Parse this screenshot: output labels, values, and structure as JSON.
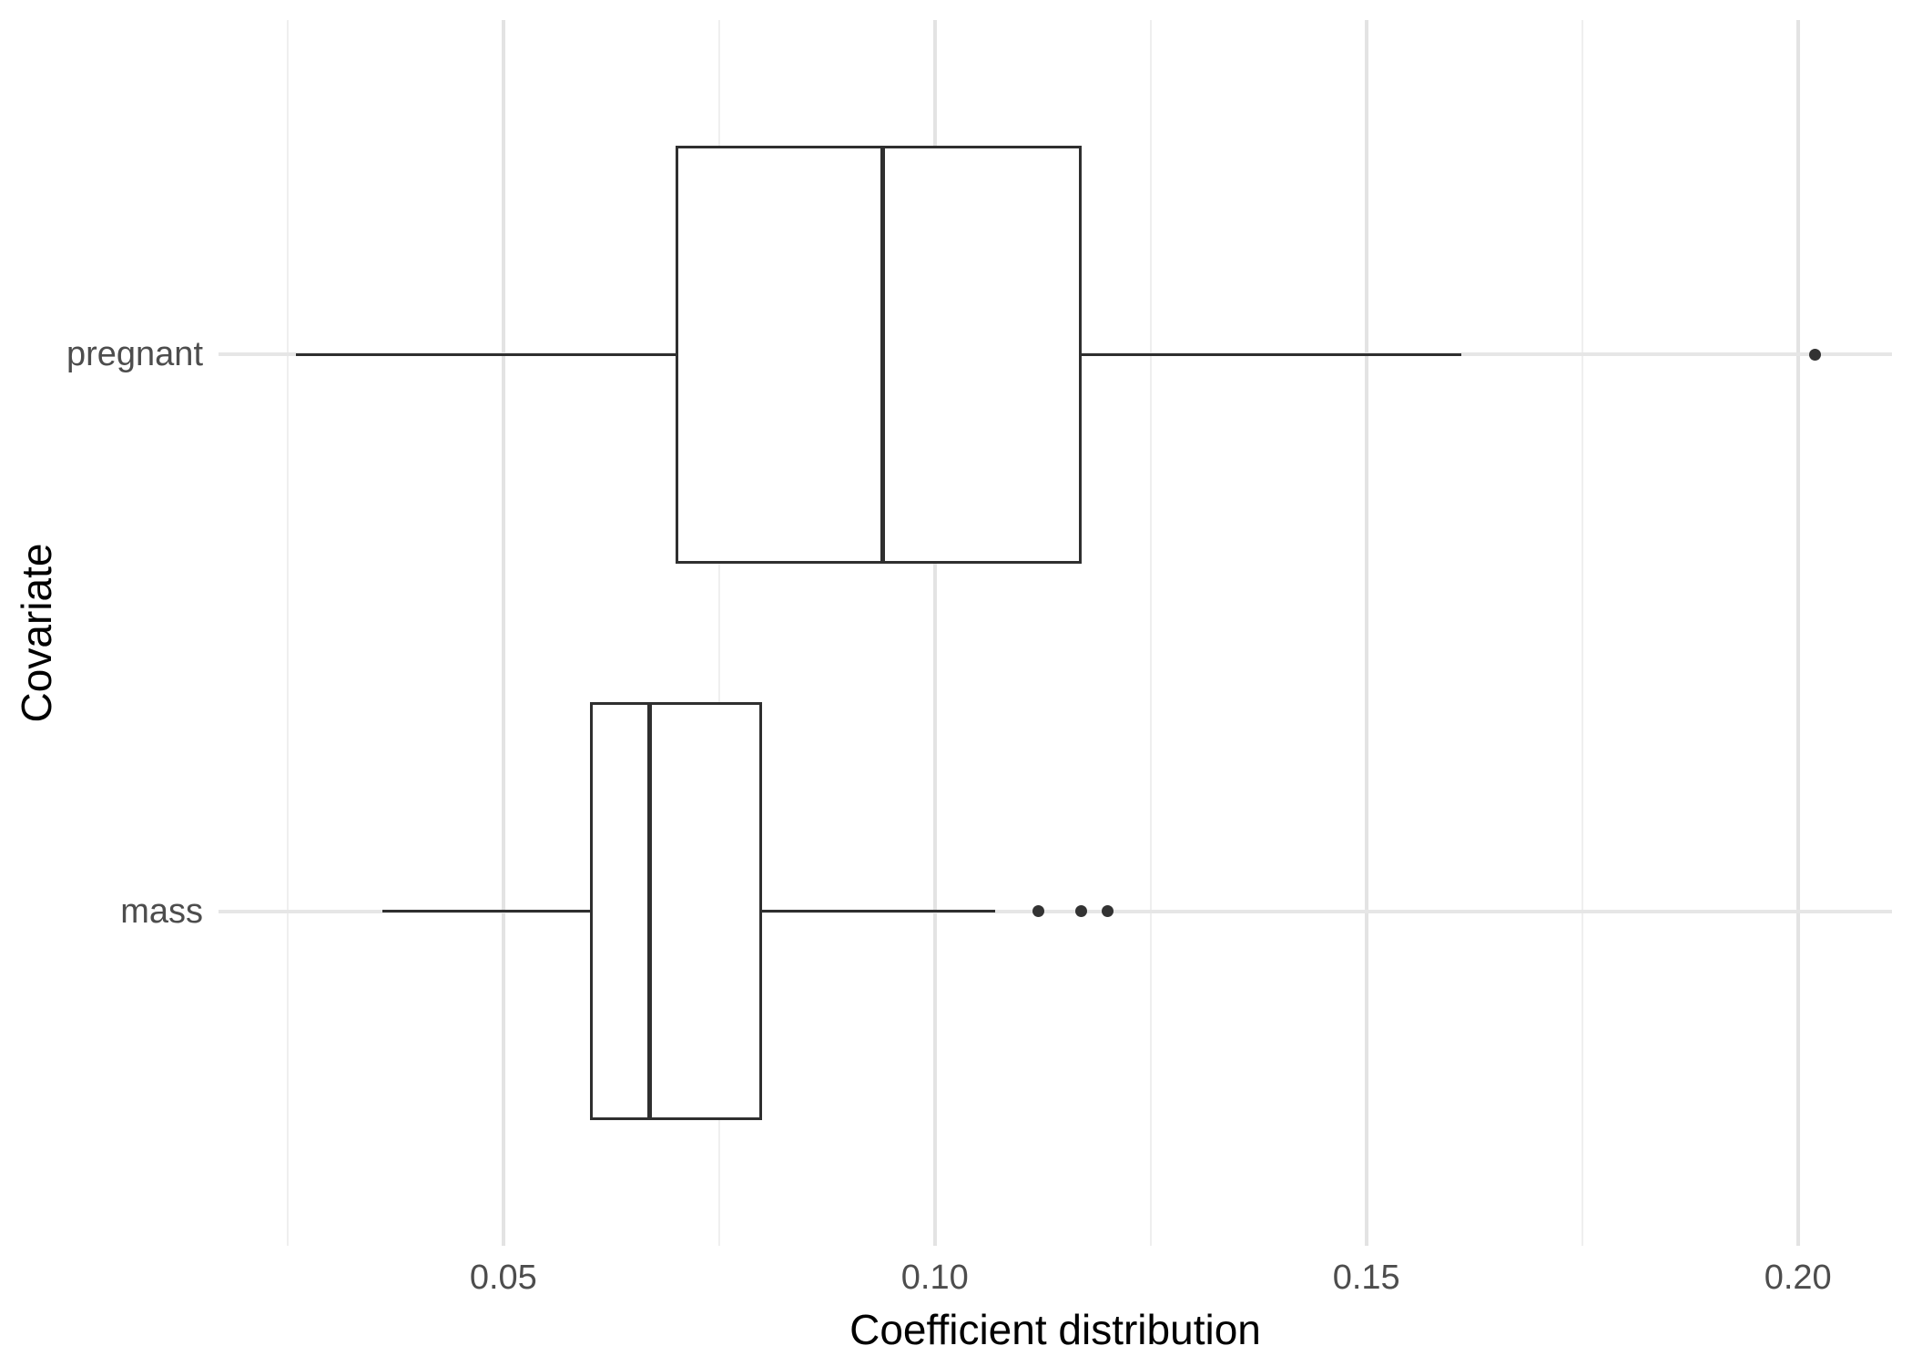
{
  "chart_data": {
    "type": "boxplot",
    "orientation": "horizontal",
    "title": "",
    "xlabel": "Coefficient distribution",
    "ylabel": "Covariate",
    "xlim": [
      0.017,
      0.2109
    ],
    "x_ticks": [
      0.05,
      0.1,
      0.15,
      0.2
    ],
    "x_tick_labels": [
      "0.05",
      "0.10",
      "0.15",
      "0.20"
    ],
    "x_minor_ticks": [
      0.025,
      0.075,
      0.125,
      0.175
    ],
    "grid": true,
    "legend": false,
    "categories": [
      "pregnant",
      "mass"
    ],
    "series": [
      {
        "name": "pregnant",
        "whisker_low": 0.026,
        "q1": 0.07,
        "median": 0.094,
        "q3": 0.117,
        "whisker_high": 0.161,
        "outliers": [
          0.202
        ]
      },
      {
        "name": "mass",
        "whisker_low": 0.036,
        "q1": 0.06,
        "median": 0.067,
        "q3": 0.08,
        "whisker_high": 0.107,
        "outliers": [
          0.112,
          0.117,
          0.12
        ]
      }
    ]
  },
  "colors": {
    "background": "#ffffff",
    "grid_major": "#e3e3e3",
    "grid_minor": "#efefef",
    "box_stroke": "#2f2f2f",
    "outlier": "#333333",
    "axis_text": "#4d4d4d",
    "axis_title": "#000000"
  }
}
